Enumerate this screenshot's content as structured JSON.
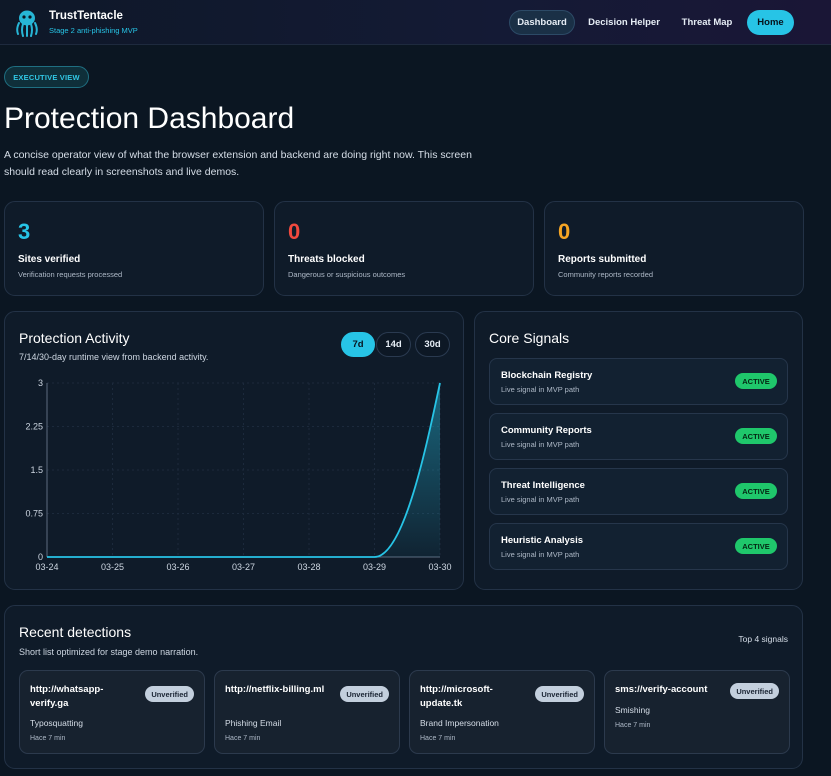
{
  "brand": {
    "name": "TrustTentacle",
    "subtitle": "Stage 2 anti-phishing MVP",
    "logo_icon": "octopus-icon"
  },
  "nav": [
    {
      "label": "Dashboard",
      "active": true
    },
    {
      "label": "Decision Helper",
      "active": false
    },
    {
      "label": "Threat Map",
      "active": false
    },
    {
      "label": "Home",
      "primary": true
    }
  ],
  "header": {
    "pill": "EXECUTIVE VIEW",
    "title": "Protection Dashboard",
    "description": "A concise operator view of what the browser extension and backend are doing right now. This screen should read clearly in screenshots and live demos."
  },
  "stats": [
    {
      "value": "3",
      "label": "Sites verified",
      "sub": "Verification requests processed",
      "color": "#27c4e6"
    },
    {
      "value": "0",
      "label": "Threats blocked",
      "sub": "Dangerous or suspicious outcomes",
      "color": "#f0493e"
    },
    {
      "value": "0",
      "label": "Reports submitted",
      "sub": "Community reports recorded",
      "color": "#f5a524"
    }
  ],
  "activity": {
    "title": "Protection Activity",
    "subtitle": "7/14/30-day runtime view from backend activity.",
    "ranges": [
      "7d",
      "14d",
      "30d"
    ],
    "selected_range": "7d"
  },
  "chart_data": {
    "type": "area",
    "title": "",
    "xlabel": "",
    "ylabel": "",
    "x": [
      "03-24",
      "03-25",
      "03-26",
      "03-27",
      "03-28",
      "03-29",
      "03-30"
    ],
    "y": [
      0,
      0,
      0,
      0,
      0,
      0,
      3
    ],
    "ylim": [
      0,
      3
    ],
    "yticks": [
      "0",
      "0.75",
      "1.5",
      "2.25",
      "3"
    ],
    "grid": true,
    "line_color": "#27c4e6"
  },
  "signals": {
    "title": "Core Signals",
    "items": [
      {
        "name": "Blockchain Registry",
        "sub": "Live signal in MVP path",
        "status": "ACTIVE"
      },
      {
        "name": "Community Reports",
        "sub": "Live signal in MVP path",
        "status": "ACTIVE"
      },
      {
        "name": "Threat Intelligence",
        "sub": "Live signal in MVP path",
        "status": "ACTIVE"
      },
      {
        "name": "Heuristic Analysis",
        "sub": "Live signal in MVP path",
        "status": "ACTIVE"
      }
    ]
  },
  "detections": {
    "title": "Recent detections",
    "subtitle": "Short list optimized for stage demo narration.",
    "count_label": "Top 4 signals",
    "items": [
      {
        "url": "http://whatsapp-verify.ga",
        "badge": "Unverified",
        "type": "Typosquatting",
        "time": "Hace 7 min"
      },
      {
        "url": "http://netflix-billing.ml",
        "badge": "Unverified",
        "type": "Phishing Email",
        "time": "Hace 7 min"
      },
      {
        "url": "http://microsoft-update.tk",
        "badge": "Unverified",
        "type": "Brand Impersonation",
        "time": "Hace 7 min"
      },
      {
        "url": "sms://verify-account",
        "badge": "Unverified",
        "type": "Smishing",
        "time": "Hace 7 min"
      }
    ]
  }
}
